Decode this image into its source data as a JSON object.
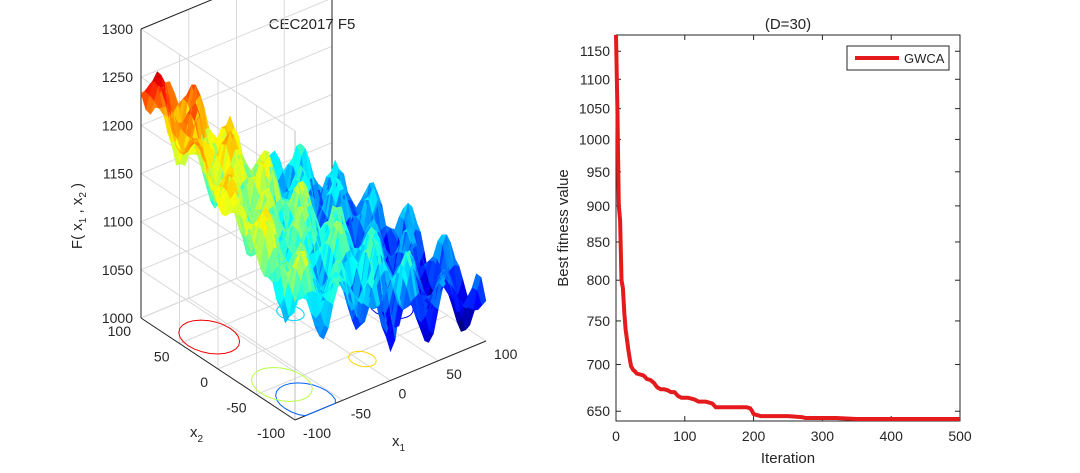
{
  "chart_data": [
    {
      "type": "surface3d",
      "title": "CEC2017 F5",
      "zlabel": "F( x , x )",
      "zlabel_subscripts": [
        "1",
        "2"
      ],
      "xlabel": "x",
      "xlabel_subscript": "1",
      "ylabel": "x",
      "ylabel_subscript": "2",
      "zticks": [
        "1000",
        "1050",
        "1100",
        "1150",
        "1200",
        "1250",
        "1300"
      ],
      "xticks": [
        "-100",
        "-50",
        "0",
        "50",
        "100"
      ],
      "yticks": [
        "100",
        "50",
        "0",
        "-50",
        "-100"
      ],
      "zlim": [
        1000,
        1300
      ],
      "xlim": [
        -100,
        100
      ],
      "ylim": [
        -100,
        100
      ],
      "colormap": "jet",
      "contour_projection": true
    },
    {
      "type": "line",
      "title": "(D=30)",
      "xlabel": "Iteration",
      "ylabel": "Best fitness value",
      "yscale": "log",
      "xlim": [
        0,
        500
      ],
      "ylim": [
        640,
        1180
      ],
      "xticks": [
        "0",
        "100",
        "200",
        "300",
        "400",
        "500"
      ],
      "yticks": [
        "650",
        "700",
        "750",
        "800",
        "850",
        "900",
        "950",
        "1000",
        "1050",
        "1100",
        "1150"
      ],
      "legend": "top-right",
      "series": [
        {
          "name": "GWCA",
          "color": "#e41a1c",
          "x": [
            0,
            2,
            4,
            6,
            8,
            10,
            12,
            14,
            16,
            18,
            20,
            22,
            25,
            28,
            30,
            35,
            40,
            45,
            50,
            55,
            60,
            65,
            70,
            75,
            80,
            85,
            90,
            95,
            100,
            105,
            110,
            115,
            120,
            130,
            140,
            145,
            150,
            160,
            170,
            180,
            190,
            195,
            198,
            200,
            205,
            210,
            220,
            230,
            250,
            270,
            275,
            280,
            300,
            320,
            350,
            400,
            450,
            500
          ],
          "values": [
            1180,
            1050,
            900,
            880,
            800,
            790,
            760,
            740,
            728,
            716,
            706,
            698,
            694,
            692,
            690,
            689,
            688,
            684,
            683,
            680,
            675,
            673,
            673,
            672,
            670,
            670,
            666,
            664,
            664,
            664,
            663,
            662,
            660,
            660,
            658,
            654,
            654,
            654,
            654,
            654,
            654,
            653,
            650,
            647,
            646,
            645,
            645,
            645,
            645,
            644,
            643,
            643,
            643,
            643,
            642,
            642,
            642,
            642
          ]
        }
      ]
    }
  ]
}
